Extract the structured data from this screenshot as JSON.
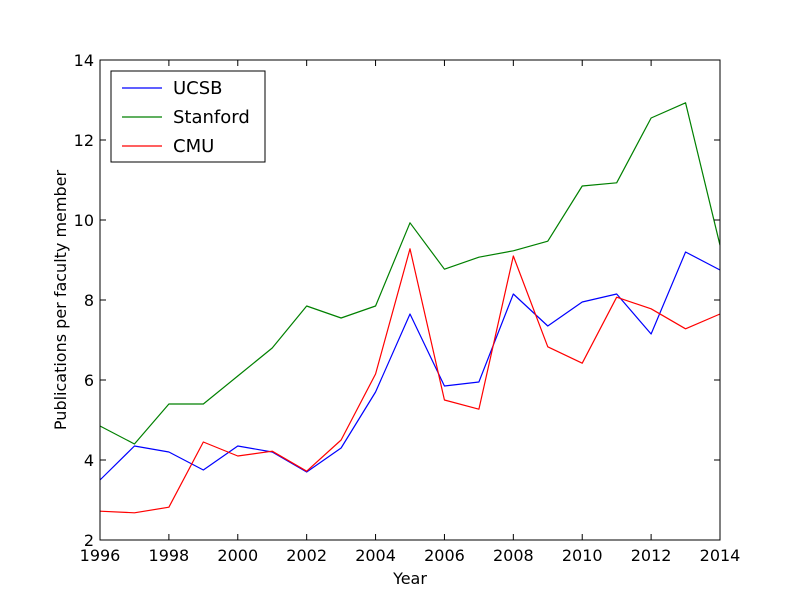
{
  "chart_data": {
    "type": "line",
    "title": "",
    "xlabel": "Year",
    "ylabel": "Publications per faculty member",
    "xlim": [
      1996,
      2014
    ],
    "ylim": [
      2,
      14
    ],
    "x_ticks": [
      1996,
      1998,
      2000,
      2002,
      2004,
      2006,
      2008,
      2010,
      2012,
      2014
    ],
    "y_ticks": [
      2,
      4,
      6,
      8,
      10,
      12,
      14
    ],
    "grid": false,
    "legend_position": "top-left",
    "x": [
      1996,
      1997,
      1998,
      1999,
      2000,
      2001,
      2002,
      2003,
      2004,
      2005,
      2006,
      2007,
      2008,
      2009,
      2010,
      2011,
      2012,
      2013,
      2014
    ],
    "series": [
      {
        "name": "UCSB",
        "color": "#0000ff",
        "values": [
          3.5,
          4.35,
          4.2,
          3.75,
          4.35,
          4.2,
          3.7,
          4.3,
          5.7,
          7.65,
          5.85,
          5.95,
          8.15,
          7.35,
          7.95,
          8.15,
          7.15,
          9.2,
          8.75
        ]
      },
      {
        "name": "Stanford",
        "color": "#008000",
        "values": [
          4.85,
          4.4,
          5.4,
          5.4,
          6.1,
          6.8,
          7.85,
          7.55,
          7.85,
          9.93,
          8.77,
          9.07,
          9.23,
          9.47,
          10.85,
          10.93,
          12.55,
          12.93,
          9.37
        ]
      },
      {
        "name": "CMU",
        "color": "#ff0000",
        "values": [
          2.72,
          2.68,
          2.82,
          4.45,
          4.1,
          4.22,
          3.72,
          4.5,
          6.15,
          9.28,
          5.5,
          5.27,
          9.1,
          6.83,
          6.42,
          8.07,
          7.78,
          7.28,
          7.65
        ]
      }
    ]
  }
}
